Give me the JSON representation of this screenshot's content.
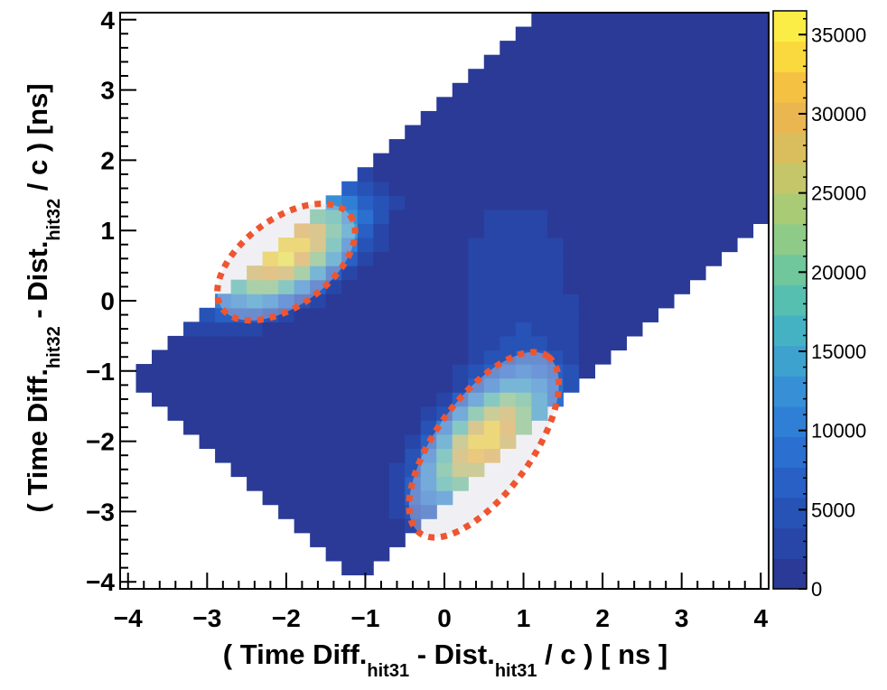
{
  "chart_data": {
    "type": "heatmap",
    "title": "",
    "xlabel": {
      "pre": "( Time Diff.",
      "sub1": "hit31",
      "mid": " - Dist.",
      "sub2": "hit31",
      "post": " / c ) [ ns ]"
    },
    "ylabel": {
      "pre": "( Time Diff.",
      "sub1": "hit32",
      "mid": " - Dist.",
      "sub2": "hit32",
      "post": " / c ) [ns]"
    },
    "xlim": [
      -4.1,
      4.1
    ],
    "ylim": [
      -4.1,
      4.1
    ],
    "bin_width_ns": 0.2,
    "x_ticks": [
      -4,
      -3,
      -2,
      -1,
      0,
      1,
      2,
      3,
      4
    ],
    "y_ticks": [
      -4,
      -3,
      -2,
      -1,
      0,
      1,
      2,
      3,
      4
    ],
    "x_tick_labels": [
      "−4",
      "−3",
      "−2",
      "−1",
      "0",
      "1",
      "2",
      "3",
      "4"
    ],
    "y_tick_labels": [
      "−4",
      "−3",
      "−2",
      "−1",
      "0",
      "1",
      "2",
      "3",
      "4"
    ],
    "colorbar": {
      "min": 0,
      "max": 36500,
      "ticks": [
        0,
        5000,
        10000,
        15000,
        20000,
        25000,
        30000,
        35000
      ],
      "tick_labels": [
        "0",
        "5000",
        "10000",
        "15000",
        "20000",
        "25000",
        "30000",
        "35000"
      ],
      "colors": [
        "#2a3a96",
        "#2846a8",
        "#2752b6",
        "#2860c6",
        "#2b6fd0",
        "#307fd6",
        "#3790d6",
        "#3ea2cf",
        "#45b2c3",
        "#57bfb0",
        "#70c79c",
        "#8ecb88",
        "#a9cb76",
        "#c4c669",
        "#dabd5c",
        "#eab650",
        "#f5c143",
        "#f9d93d",
        "#fbed45"
      ]
    },
    "peaks": [
      {
        "name": "peak-upper-left",
        "x": -2.0,
        "y": 0.68,
        "value": 36000,
        "rotation_deg": 37,
        "sigma_major": 0.68,
        "sigma_minor": 0.34
      },
      {
        "name": "peak-lower-right",
        "x": 0.52,
        "y": -2.0,
        "value": 34500,
        "rotation_deg": 52,
        "sigma_major": 0.68,
        "sigma_minor": 0.34
      }
    ],
    "annotations": [
      {
        "name": "upper-left-ellipse",
        "shape": "dotted-ellipse",
        "color": "#ee5530",
        "cx": -2.0,
        "cy": 0.55,
        "rx": 1.0,
        "ry": 0.62,
        "rotation_deg": 36
      },
      {
        "name": "lower-right-ellipse",
        "shape": "dotted-ellipse",
        "color": "#ee5530",
        "cx": 0.5,
        "cy": -2.05,
        "rx": 1.38,
        "ry": 0.68,
        "rotation_deg": 54
      }
    ],
    "background_color": "#2a3a96",
    "empty_color": "#ffffff"
  }
}
